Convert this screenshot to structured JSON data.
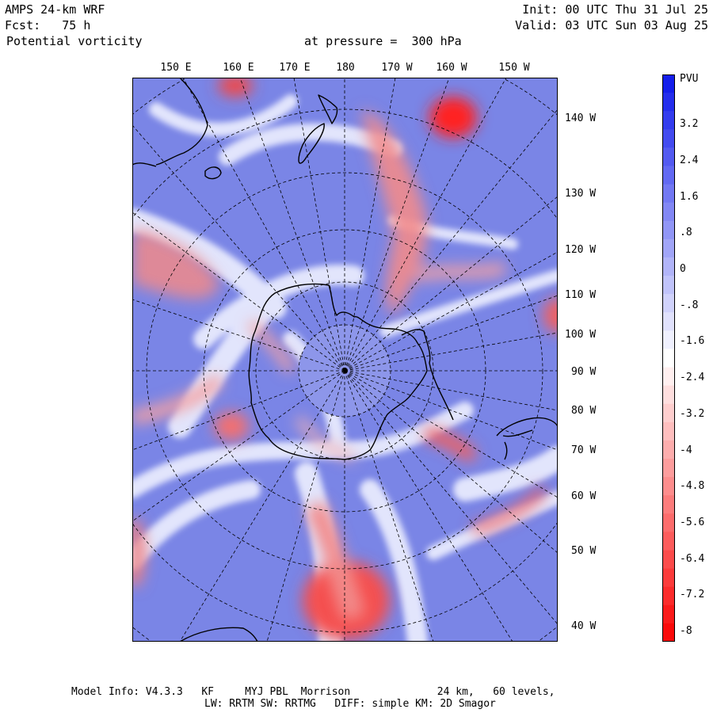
{
  "header": {
    "model": "AMPS 24-km WRF",
    "forecast": "Fcst:   75 h",
    "field": "Potential vorticity",
    "level": "at pressure =  300 hPa",
    "init": "Init: 00 UTC Thu 31 Jul 25",
    "valid": "Valid: 03 UTC Sun 03 Aug 25"
  },
  "map": {
    "top_labels": [
      "150 E",
      "160 E",
      "170 E",
      "180",
      "170 W",
      "160 W",
      "150 W"
    ],
    "right_labels": [
      "140 W",
      "130 W",
      "120 W",
      "110 W",
      "100 W",
      "90 W",
      "80 W",
      "70 W",
      "60 W",
      "50 W",
      "40 W"
    ],
    "colors": {
      "background_blue": "#7a85e6",
      "red_high": "#ff1a1a",
      "white": "#ffffff"
    }
  },
  "colorbar": {
    "unit": "PVU",
    "labels": [
      "3.2",
      "2.4",
      "1.6",
      ".8",
      "0",
      "-.8",
      "-1.6",
      "-2.4",
      "-3.2",
      "-4",
      "-4.8",
      "-5.6",
      "-6.4",
      "-7.2",
      "-8"
    ]
  },
  "footer": {
    "line1": "Model Info: V4.3.3   KF     MYJ PBL  Morrison              24 km,   60 levels,",
    "line2": "LW: RRTM SW: RRTMG   DIFF: simple KM: 2D Smagor"
  }
}
